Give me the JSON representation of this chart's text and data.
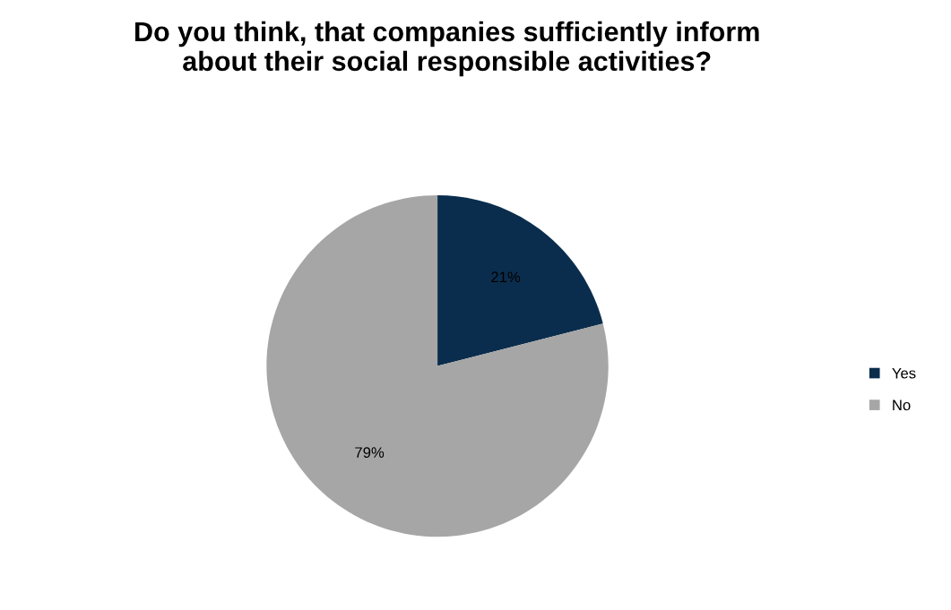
{
  "chart_data": {
    "type": "pie",
    "title": "Do you think, that companies sufficiently inform\nabout their social responsible activities?",
    "categories": [
      "Yes",
      "No"
    ],
    "values": [
      21,
      79
    ],
    "colors": [
      "#0b2d4d",
      "#a6a6a6"
    ],
    "value_labels": [
      "21%",
      "79%"
    ],
    "legend": "right"
  }
}
